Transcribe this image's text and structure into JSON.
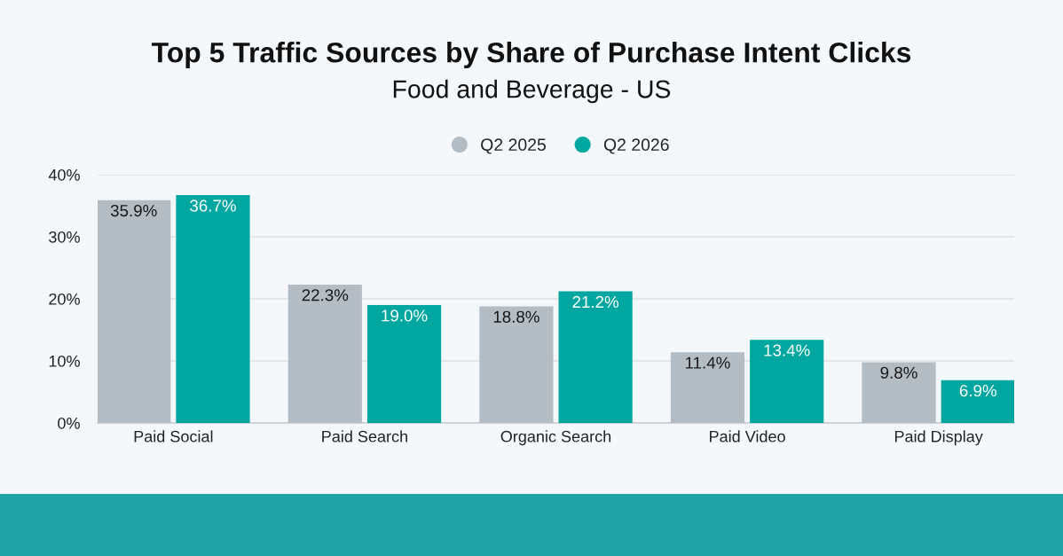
{
  "chart_data": {
    "type": "bar",
    "title": "Top 5 Traffic Sources by Share of Purchase Intent Clicks",
    "subtitle": "Food and Beverage - US",
    "categories": [
      "Paid Social",
      "Paid Search",
      "Organic Search",
      "Paid Video",
      "Paid Display"
    ],
    "series": [
      {
        "name": "Q2 2025",
        "color": "#b4bcc4",
        "values": [
          35.9,
          22.3,
          18.8,
          11.4,
          9.8
        ],
        "value_labels": [
          "35.9%",
          "22.3%",
          "18.8%",
          "11.4%",
          "9.8%"
        ]
      },
      {
        "name": "Q2 2026",
        "color": "#00a6a0",
        "values": [
          36.7,
          19.0,
          21.2,
          13.4,
          6.9
        ],
        "value_labels": [
          "36.7%",
          "19.0%",
          "21.2%",
          "13.4%",
          "6.9%"
        ]
      }
    ],
    "ylim": [
      0,
      40
    ],
    "yticks": [
      {
        "value": 0,
        "label": "0%"
      },
      {
        "value": 10,
        "label": "10%"
      },
      {
        "value": 20,
        "label": "20%"
      },
      {
        "value": 30,
        "label": "30%"
      },
      {
        "value": 40,
        "label": "40%"
      }
    ],
    "grid": "y",
    "legend": "top"
  }
}
